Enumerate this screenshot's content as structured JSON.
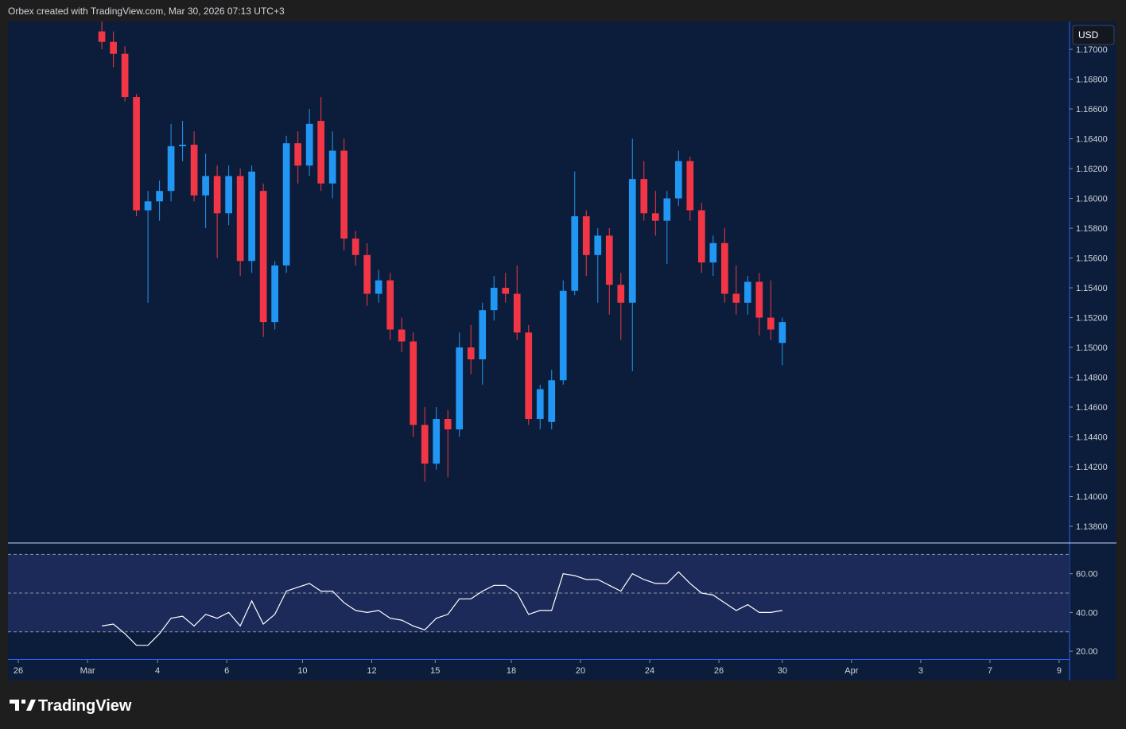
{
  "header": "Orbex created with TradingView.com, Mar 30, 2026 07:13 UTC+3",
  "watermark": "TradingView",
  "chart_data": [
    {
      "type": "candlestick",
      "currency": "USD",
      "up_color": "#2196f3",
      "down_color": "#f23645",
      "x": [
        0,
        1,
        2,
        3,
        4,
        5,
        6,
        7,
        8,
        9,
        10,
        11,
        12,
        13,
        14,
        15,
        16,
        17,
        18,
        19,
        20,
        21,
        22,
        23,
        24,
        25,
        26,
        27,
        28,
        29,
        30,
        31,
        32,
        33,
        34,
        35,
        36,
        37,
        38,
        39,
        40,
        41,
        42,
        43,
        44,
        45,
        46,
        47,
        48,
        49,
        50,
        51,
        52,
        53,
        54,
        55,
        56,
        57,
        58,
        59
      ],
      "open": [
        1.1712,
        1.1705,
        1.1697,
        1.1668,
        1.1592,
        1.1598,
        1.1605,
        1.1635,
        1.1636,
        1.1602,
        1.1615,
        1.159,
        1.1615,
        1.1558,
        1.1605,
        1.1517,
        1.1555,
        1.1637,
        1.1622,
        1.1652,
        1.161,
        1.1632,
        1.1573,
        1.1562,
        1.1536,
        1.1545,
        1.1512,
        1.1504,
        1.1448,
        1.1422,
        1.1452,
        1.1445,
        1.15,
        1.1492,
        1.1525,
        1.154,
        1.1536,
        1.151,
        1.1452,
        1.145,
        1.1478,
        1.1538,
        1.1588,
        1.1562,
        1.1575,
        1.1542,
        1.153,
        1.1613,
        1.159,
        1.1585,
        1.16,
        1.1625,
        1.1592,
        1.1557,
        1.157,
        1.1536,
        1.153,
        1.1544,
        1.152,
        1.1503
      ],
      "high": [
        1.172,
        1.1712,
        1.1702,
        1.167,
        1.1605,
        1.1612,
        1.165,
        1.1652,
        1.1645,
        1.163,
        1.1622,
        1.1622,
        1.162,
        1.1622,
        1.161,
        1.1558,
        1.1642,
        1.1645,
        1.166,
        1.1668,
        1.1645,
        1.164,
        1.1578,
        1.157,
        1.1552,
        1.155,
        1.152,
        1.151,
        1.146,
        1.146,
        1.1458,
        1.151,
        1.1515,
        1.153,
        1.1548,
        1.155,
        1.1555,
        1.1515,
        1.1475,
        1.1485,
        1.1545,
        1.1618,
        1.1592,
        1.158,
        1.158,
        1.155,
        1.164,
        1.1625,
        1.1605,
        1.1605,
        1.1632,
        1.1628,
        1.1597,
        1.1575,
        1.158,
        1.1555,
        1.1548,
        1.155,
        1.1545,
        1.152
      ],
      "low": [
        1.17,
        1.1688,
        1.1665,
        1.1588,
        1.153,
        1.1585,
        1.1598,
        1.1625,
        1.1598,
        1.158,
        1.156,
        1.1582,
        1.1548,
        1.155,
        1.1507,
        1.1512,
        1.155,
        1.161,
        1.1615,
        1.1605,
        1.16,
        1.1565,
        1.1555,
        1.1528,
        1.153,
        1.1505,
        1.1497,
        1.144,
        1.141,
        1.1418,
        1.1413,
        1.144,
        1.1482,
        1.1475,
        1.1518,
        1.153,
        1.1505,
        1.1448,
        1.1445,
        1.1445,
        1.1475,
        1.1535,
        1.1548,
        1.153,
        1.1522,
        1.1505,
        1.1484,
        1.1585,
        1.1575,
        1.1556,
        1.1595,
        1.1585,
        1.155,
        1.1548,
        1.153,
        1.1522,
        1.1522,
        1.1508,
        1.1505,
        1.1488
      ],
      "close": [
        1.1705,
        1.1697,
        1.1668,
        1.1592,
        1.1598,
        1.1605,
        1.1635,
        1.1636,
        1.1602,
        1.1615,
        1.159,
        1.1615,
        1.1558,
        1.1618,
        1.1517,
        1.1555,
        1.1637,
        1.1622,
        1.165,
        1.161,
        1.1632,
        1.1573,
        1.1562,
        1.1536,
        1.1545,
        1.1512,
        1.1504,
        1.1448,
        1.1422,
        1.1452,
        1.1445,
        1.15,
        1.1492,
        1.1525,
        1.154,
        1.1536,
        1.151,
        1.1452,
        1.1472,
        1.1478,
        1.1538,
        1.1588,
        1.1562,
        1.1575,
        1.1542,
        1.153,
        1.1613,
        1.159,
        1.1585,
        1.16,
        1.1625,
        1.1592,
        1.1557,
        1.157,
        1.1536,
        1.153,
        1.1544,
        1.152,
        1.1512,
        1.1517
      ],
      "xlim": [
        -8.14,
        83.9
      ],
      "xticks": [
        {
          "value": -7.24,
          "label": "26"
        },
        {
          "value": -1.24,
          "label": "Mar"
        },
        {
          "value": 4.83,
          "label": "4"
        },
        {
          "value": 10.83,
          "label": "6"
        },
        {
          "value": 17.4,
          "label": "10"
        },
        {
          "value": 23.4,
          "label": "12"
        },
        {
          "value": 28.9,
          "label": "15"
        },
        {
          "value": 35.5,
          "label": "18"
        },
        {
          "value": 41.5,
          "label": "20"
        },
        {
          "value": 47.5,
          "label": "24"
        },
        {
          "value": 53.5,
          "label": "26"
        },
        {
          "value": 59.0,
          "label": "30"
        },
        {
          "value": 65.0,
          "label": "Apr"
        },
        {
          "value": 71.0,
          "label": "3"
        },
        {
          "value": 77.0,
          "label": "7"
        },
        {
          "value": 83.0,
          "label": "9"
        }
      ],
      "ylim": [
        1.13688,
        1.17187
      ],
      "yticks": [
        {
          "value": 1.17,
          "label": "1.17000"
        },
        {
          "value": 1.168,
          "label": "1.16800"
        },
        {
          "value": 1.166,
          "label": "1.16600"
        },
        {
          "value": 1.164,
          "label": "1.16400"
        },
        {
          "value": 1.162,
          "label": "1.16200"
        },
        {
          "value": 1.16,
          "label": "1.16000"
        },
        {
          "value": 1.158,
          "label": "1.15800"
        },
        {
          "value": 1.156,
          "label": "1.15600"
        },
        {
          "value": 1.154,
          "label": "1.15400"
        },
        {
          "value": 1.152,
          "label": "1.15200"
        },
        {
          "value": 1.15,
          "label": "1.15000"
        },
        {
          "value": 1.148,
          "label": "1.14800"
        },
        {
          "value": 1.146,
          "label": "1.14600"
        },
        {
          "value": 1.144,
          "label": "1.14400"
        },
        {
          "value": 1.142,
          "label": "1.14200"
        },
        {
          "value": 1.14,
          "label": "1.14000"
        },
        {
          "value": 1.138,
          "label": "1.13800"
        }
      ]
    },
    {
      "type": "line",
      "color": "#ffffff",
      "band_color": "#1c2a5a",
      "x": [
        0,
        1,
        2,
        3,
        4,
        5,
        6,
        7,
        8,
        9,
        10,
        11,
        12,
        13,
        14,
        15,
        16,
        17,
        18,
        19,
        20,
        21,
        22,
        23,
        24,
        25,
        26,
        27,
        28,
        29,
        30,
        31,
        32,
        33,
        34,
        35,
        36,
        37,
        38,
        39,
        40,
        41,
        42,
        43,
        44,
        45,
        46,
        47,
        48,
        49,
        50,
        51,
        52,
        53,
        54,
        55,
        56,
        57,
        58,
        59
      ],
      "values": [
        33,
        34,
        29,
        23,
        23,
        29,
        37,
        38,
        33,
        39,
        37,
        40,
        33,
        46,
        34,
        39,
        51,
        53,
        55,
        51,
        51,
        45,
        41,
        40,
        41,
        37,
        36,
        33,
        31,
        37,
        39,
        47,
        47,
        51,
        54,
        54,
        50,
        39,
        41,
        41,
        60,
        59,
        57,
        57,
        54,
        51,
        60,
        57,
        55,
        55,
        61,
        55,
        50,
        49,
        45,
        41,
        44,
        40,
        40,
        41
      ],
      "band_lines": [
        70,
        50,
        30
      ],
      "xlim": [
        -8.14,
        83.9
      ],
      "ylim": [
        15.9,
        75.9
      ],
      "yticks": [
        {
          "value": 60,
          "label": "60.00"
        },
        {
          "value": 40,
          "label": "40.00"
        },
        {
          "value": 20,
          "label": "20.00"
        }
      ]
    }
  ]
}
